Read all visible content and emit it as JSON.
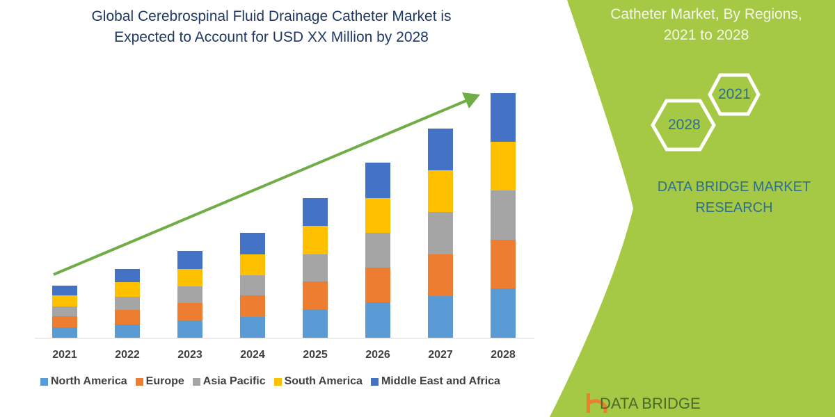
{
  "title_lines": [
    "Global Cerebrospinal Fluid Drainage Catheter Market is",
    "Expected to Account for USD XX Million by 2028"
  ],
  "side_panel": {
    "title_lines": [
      "Catheter Market, By Regions,",
      "2021 to 2028"
    ],
    "hex_labels": [
      "2021",
      "2028"
    ],
    "brand_lines": [
      "DATA BRIDGE MARKET",
      "RESEARCH"
    ],
    "logo_text": "DATA BRIDGE",
    "color": "#a5c845"
  },
  "chart_data": {
    "type": "bar",
    "stacked": true,
    "categories": [
      "2021",
      "2022",
      "2023",
      "2024",
      "2025",
      "2026",
      "2027",
      "2028"
    ],
    "series": [
      {
        "name": "North America",
        "color": "#5b9bd5",
        "values": [
          15,
          19,
          25,
          30,
          41,
          51,
          60,
          71
        ]
      },
      {
        "name": "Europe",
        "color": "#ed7d31",
        "values": [
          16,
          21,
          25,
          31,
          40,
          50,
          60,
          70
        ]
      },
      {
        "name": "Asia Pacific",
        "color": "#a5a5a5",
        "values": [
          14,
          19,
          24,
          29,
          39,
          50,
          61,
          71
        ]
      },
      {
        "name": "South America",
        "color": "#ffc000",
        "values": [
          16,
          21,
          25,
          30,
          41,
          50,
          60,
          70
        ]
      },
      {
        "name": "Middle East and Africa",
        "color": "#4472c4",
        "values": [
          14,
          19,
          26,
          31,
          40,
          51,
          60,
          70
        ]
      }
    ],
    "xlabel": "",
    "ylabel": "",
    "grid": false,
    "legend": "bottom",
    "trend_arrow_color": "#70ad47"
  }
}
